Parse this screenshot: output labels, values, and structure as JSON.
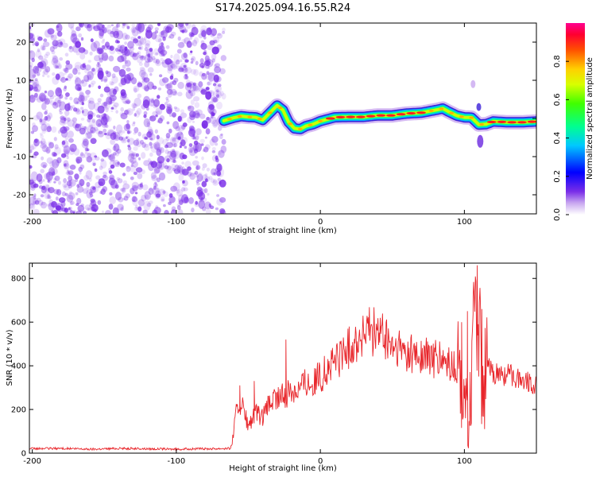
{
  "figure": {
    "title": "S174.2025.094.16.55.R24"
  },
  "colors": {
    "snr_line": "#e8262b",
    "speckle": "#7a2ee8",
    "frame": "#000000"
  },
  "chart_data": [
    {
      "type": "heatmap",
      "xlabel": "Height of straight line (km)",
      "ylabel": "Frequency (Hz)",
      "xlim": [
        -202,
        150
      ],
      "ylim": [
        -25,
        25
      ],
      "xticks": [
        -200,
        -100,
        0,
        100
      ],
      "xtick_labels": [
        "-200",
        "-100",
        "0",
        "100"
      ],
      "yticks": [
        -20,
        -10,
        0,
        10,
        20
      ],
      "ytick_labels": [
        "-20",
        "-10",
        "0",
        "10",
        "20"
      ],
      "grid": false,
      "noise_region_x": [
        -202,
        -67
      ],
      "ridge": {
        "x": [
          -67,
          -60,
          -55,
          -50,
          -45,
          -40,
          -35,
          -30,
          -26,
          -22,
          -18,
          -14,
          -10,
          -5,
          0,
          10,
          20,
          30,
          40,
          50,
          60,
          70,
          80,
          85,
          90,
          95,
          100,
          105,
          110,
          115,
          120,
          130,
          140,
          150
        ],
        "frequency": [
          -0.6,
          0.2,
          0.6,
          0.4,
          0.3,
          -0.4,
          1.5,
          3.4,
          2.2,
          -1.0,
          -2.6,
          -2.8,
          -2.0,
          -1.5,
          -0.7,
          0.3,
          0.4,
          0.4,
          0.8,
          0.8,
          1.3,
          1.5,
          2.2,
          2.6,
          1.6,
          0.7,
          0.3,
          0.2,
          -1.6,
          -1.5,
          -0.8,
          -1.0,
          -1.0,
          -0.8
        ]
      },
      "colorbar": {
        "label": "Normalized spectral amplitude",
        "range": [
          0,
          1
        ],
        "ticks": [
          0.0,
          0.2,
          0.4,
          0.6,
          0.8
        ],
        "tick_labels": [
          "0.0",
          "0.2",
          "0.4",
          "0.6",
          "0.8"
        ]
      }
    },
    {
      "type": "line",
      "xlabel": "Height of straight line (km)",
      "ylabel": "SNR (10 * v/v)",
      "xlim": [
        -202,
        150
      ],
      "ylim": [
        0,
        870
      ],
      "xticks": [
        -200,
        -100,
        0,
        100
      ],
      "xtick_labels": [
        "-200",
        "-100",
        "0",
        "100"
      ],
      "yticks": [
        0,
        200,
        400,
        600,
        800
      ],
      "ytick_labels": [
        "0",
        "200",
        "400",
        "600",
        "800"
      ],
      "grid": false,
      "series": [
        {
          "x": [
            -202,
            -180,
            -160,
            -140,
            -120,
            -100,
            -80,
            -62,
            -58,
            -55,
            -50,
            -45,
            -40,
            -35,
            -30,
            -25,
            -20,
            -15,
            -10,
            -5,
            0,
            10,
            20,
            30,
            35,
            40,
            45,
            50,
            60,
            70,
            80,
            90,
            95,
            100,
            103,
            106,
            108,
            110,
            112,
            115,
            120,
            130,
            140,
            150
          ],
          "y": [
            20,
            22,
            18,
            22,
            20,
            18,
            20,
            22,
            200,
            230,
            120,
            180,
            160,
            230,
            250,
            260,
            290,
            300,
            330,
            320,
            350,
            420,
            480,
            540,
            560,
            550,
            520,
            480,
            460,
            440,
            430,
            400,
            380,
            300,
            100,
            500,
            520,
            760,
            180,
            400,
            360,
            360,
            340,
            310
          ],
          "spikes": [
            {
              "x": -56,
              "y": 310
            },
            {
              "x": -46,
              "y": 330
            },
            {
              "x": -24,
              "y": 520
            },
            {
              "x": 98,
              "y": 600
            },
            {
              "x": 102,
              "y": 650
            },
            {
              "x": 106,
              "y": 720
            },
            {
              "x": 109,
              "y": 860
            },
            {
              "x": 112,
              "y": 660
            }
          ]
        }
      ]
    }
  ]
}
